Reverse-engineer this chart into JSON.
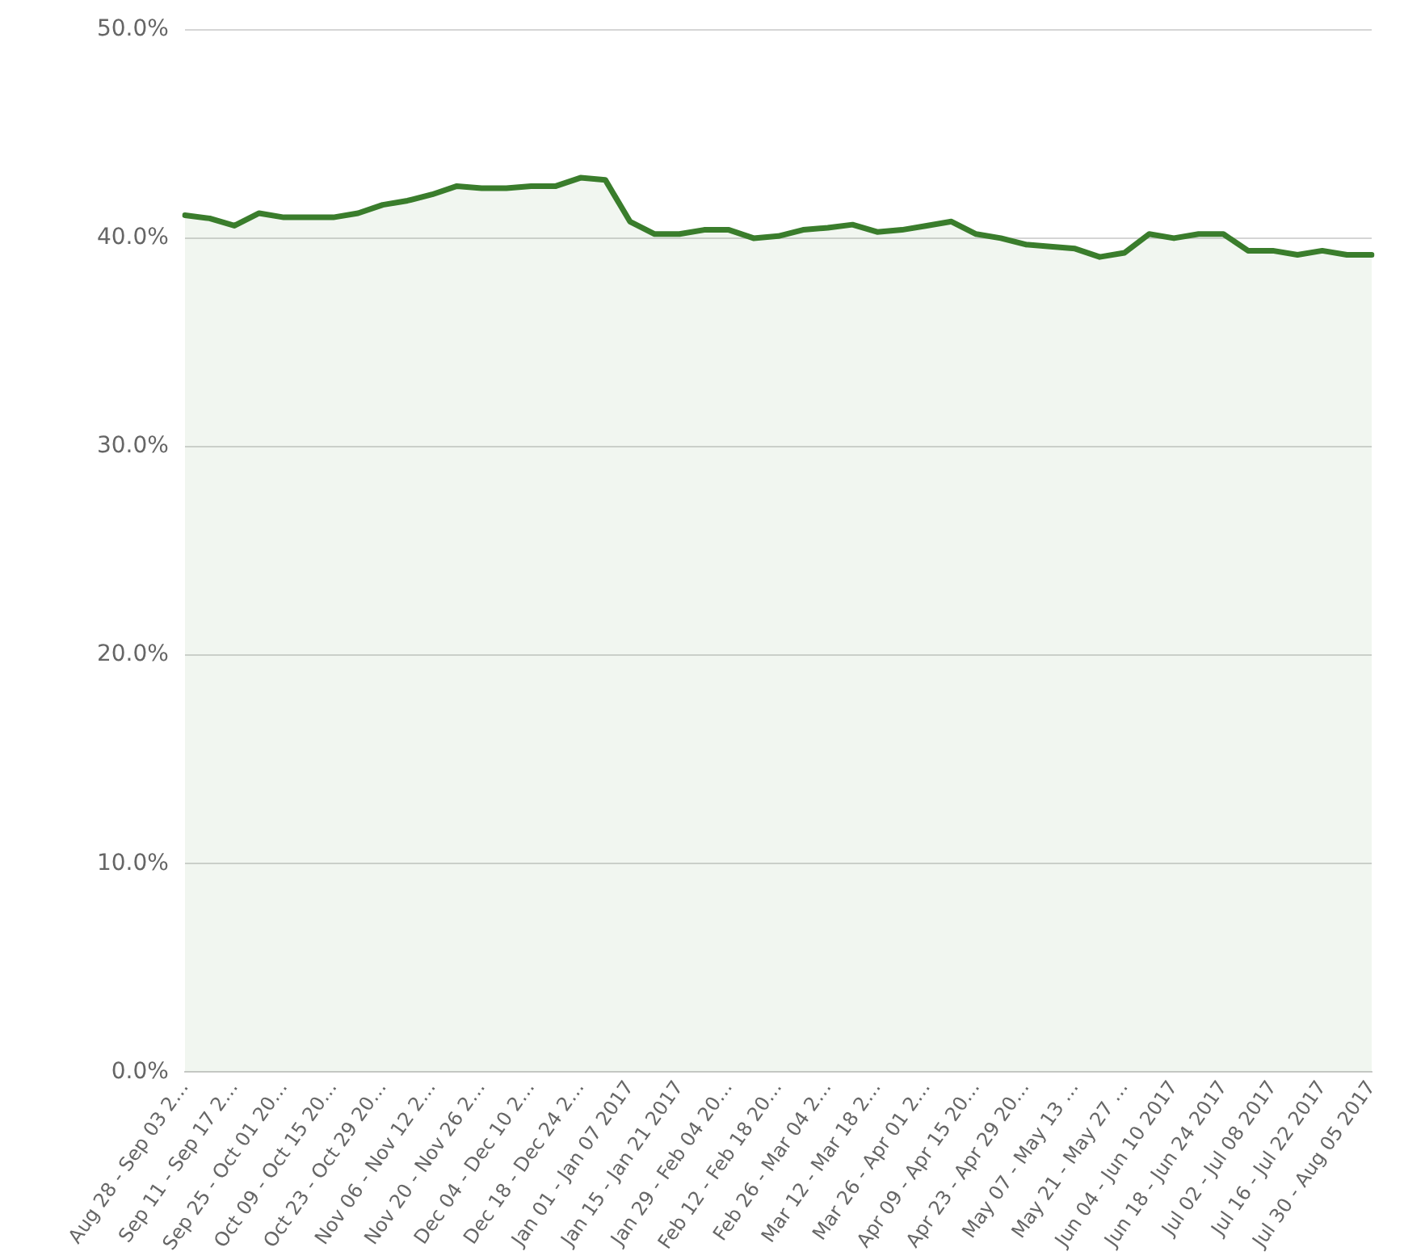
{
  "chart_data": {
    "type": "area",
    "categories": [
      "Aug 28 - Sep 03 2…",
      null,
      "Sep 11 - Sep 17 2…",
      null,
      "Sep 25 - Oct 01 20…",
      null,
      "Oct 09 - Oct 15 20…",
      null,
      "Oct 23 - Oct 29 20…",
      null,
      "Nov 06 - Nov 12 2…",
      null,
      "Nov 20 - Nov 26 2…",
      null,
      "Dec 04 - Dec 10 2…",
      null,
      "Dec 18 - Dec 24 2…",
      null,
      "Jan 01 - Jan 07 2017",
      null,
      "Jan 15 - Jan 21 2017",
      null,
      "Jan 29 - Feb 04 20…",
      null,
      "Feb 12 - Feb 18 20…",
      null,
      "Feb 26 - Mar 04 2…",
      null,
      "Mar 12 - Mar 18 2…",
      null,
      "Mar 26 - Apr 01 2…",
      null,
      "Apr 09 - Apr 15 20…",
      null,
      "Apr 23 - Apr 29 20…",
      null,
      "May 07 - May 13 …",
      null,
      "May 21 - May 27 …",
      null,
      "Jun 04 - Jun 10 2017",
      null,
      "Jun 18 - Jun 24 2017",
      null,
      "Jul 02 - Jul 08 2017",
      null,
      "Jul 16 - Jul 22 2017",
      null,
      "Jul 30 - Aug 05 2017"
    ],
    "series": [
      {
        "color": "#3a7d2c",
        "values": [
          41.1,
          40.95,
          40.6,
          41.2,
          41.0,
          41.0,
          41.0,
          41.2,
          41.6,
          41.8,
          42.1,
          42.5,
          42.4,
          42.4,
          42.5,
          42.5,
          42.9,
          42.8,
          40.8,
          40.2,
          40.2,
          40.4,
          40.4,
          40.0,
          40.1,
          40.4,
          40.5,
          40.65,
          40.3,
          40.4,
          40.6,
          40.8,
          40.2,
          40.0,
          39.7,
          39.6,
          39.5,
          39.1,
          39.3,
          40.2,
          40.0,
          40.2,
          40.2,
          39.4,
          39.4,
          39.2,
          39.4,
          39.2,
          39.2
        ]
      }
    ],
    "ylim": [
      0,
      50
    ],
    "yticks": [
      {
        "value": 0,
        "label": "0.0%"
      },
      {
        "value": 10,
        "label": "10.0%"
      },
      {
        "value": 20,
        "label": "20.0%"
      },
      {
        "value": 30,
        "label": "30.0%"
      },
      {
        "value": 40,
        "label": "40.0%"
      },
      {
        "value": 50,
        "label": "50.0%"
      }
    ],
    "grid": "y",
    "legend": false,
    "marker": "none",
    "line_style": "solid"
  }
}
